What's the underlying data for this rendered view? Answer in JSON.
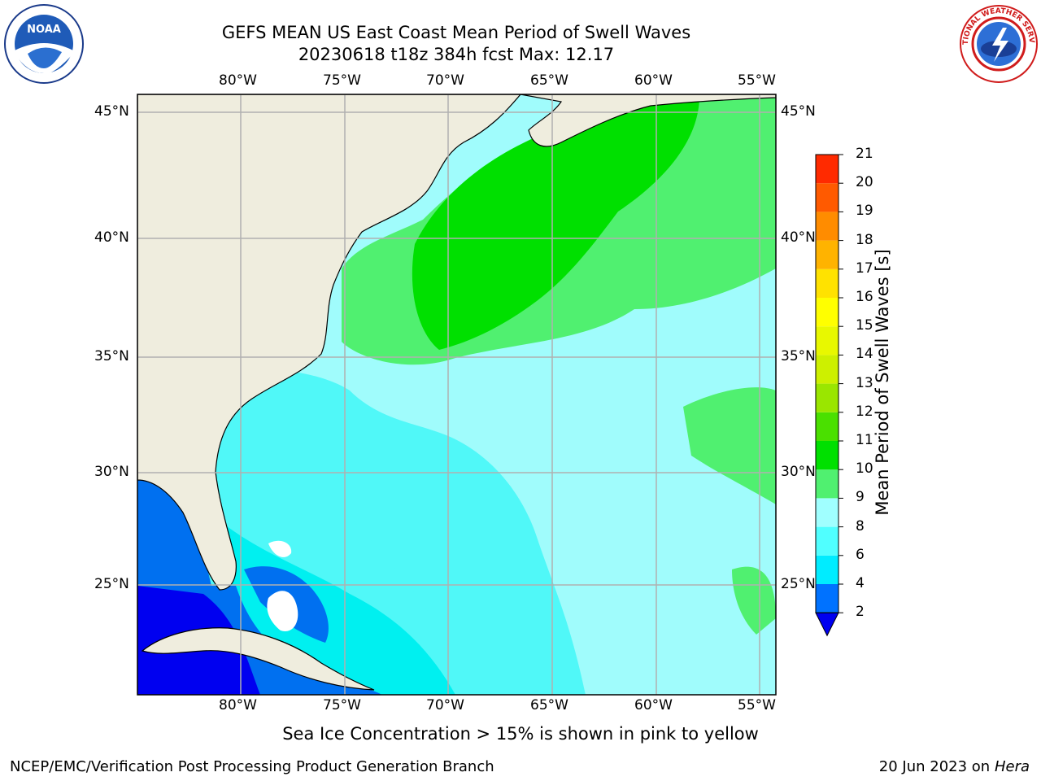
{
  "title": {
    "line1": "GEFS MEAN US East Coast Mean Period of Swell Waves",
    "line2": "20230618 t18z 384h fcst   Max: 12.17"
  },
  "map": {
    "lon_labels": [
      "80°W",
      "75°W",
      "70°W",
      "65°W",
      "60°W",
      "55°W"
    ],
    "lat_labels": [
      "45°N",
      "40°N",
      "35°N",
      "30°N",
      "25°N"
    ],
    "colors": {
      "land": "#efedde",
      "ocean_dark": "#0000f0",
      "ocean_blue": "#0070f0",
      "ocean_cyan1": "#00f0f0",
      "ocean_cyan2": "#50f8f8",
      "ocean_cyan3": "#a0fcfc",
      "green1": "#50f070",
      "green2": "#00e000",
      "grid": "#b0b0b0"
    }
  },
  "colorbar": {
    "label": "Mean Period of Swell Waves [s]",
    "ticks": [
      "2",
      "4",
      "6",
      "8",
      "9",
      "10",
      "11",
      "12",
      "13",
      "14",
      "15",
      "16",
      "17",
      "18",
      "19",
      "20",
      "21"
    ],
    "colors": [
      "#0072ff",
      "#00ecff",
      "#50ffff",
      "#a0ffff",
      "#50f070",
      "#00e000",
      "#4ae000",
      "#9ae600",
      "#cdf000",
      "#e8f800",
      "#ffff00",
      "#ffe200",
      "#ffb300",
      "#ff8c00",
      "#ff5a00",
      "#ff2a00",
      "#ff0000"
    ],
    "under_color": "#0000f0"
  },
  "footer": {
    "note": "Sea Ice Concentration > 15% is shown in pink to yellow",
    "credit": "NCEP/EMC/Verification Post Processing Product Generation Branch",
    "date": "20 Jun 2023 on",
    "machine": "Hera"
  },
  "logos": {
    "noaa": "NOAA",
    "nws": "NATIONAL WEATHER SERVICE"
  }
}
